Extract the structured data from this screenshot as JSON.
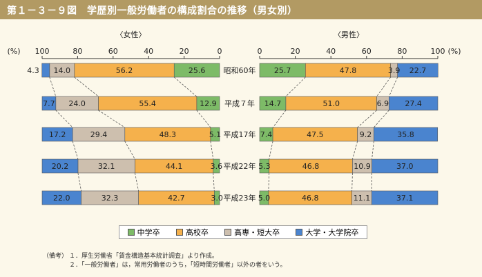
{
  "figure": {
    "title": "第１－３－９図　学歴別一般労働者の構成割合の推移（男女別）"
  },
  "chart_data": {
    "type": "bar",
    "orientation": "horizontal",
    "stacked": true,
    "unit_left": "(%)",
    "unit_right": "(%)",
    "categories": [
      "昭和60年",
      "平成７年",
      "平成17年",
      "平成22年",
      "平成23年"
    ],
    "panels": [
      {
        "name": "〈女性〉",
        "direction": "right-to-left",
        "xlim": [
          0,
          100
        ],
        "tick_labels": [
          "100",
          "80",
          "60",
          "40",
          "20",
          "0"
        ],
        "series": [
          {
            "name": "中学卒",
            "color": "#7dbb67",
            "values": [
              25.6,
              12.9,
              5.1,
              3.6,
              3.0
            ]
          },
          {
            "name": "高校卒",
            "color": "#f5b14c",
            "values": [
              56.2,
              55.4,
              48.3,
              44.1,
              42.7
            ]
          },
          {
            "name": "高専・短大卒",
            "color": "#cdbfae",
            "values": [
              14.0,
              24.0,
              29.4,
              32.1,
              32.3
            ]
          },
          {
            "name": "大学・大学院卒",
            "color": "#4a84cf",
            "values": [
              4.3,
              7.7,
              17.2,
              20.2,
              22.0
            ]
          }
        ]
      },
      {
        "name": "〈男性〉",
        "direction": "left-to-right",
        "xlim": [
          0,
          100
        ],
        "tick_labels": [
          "0",
          "20",
          "40",
          "60",
          "80",
          "100"
        ],
        "series": [
          {
            "name": "中学卒",
            "color": "#7dbb67",
            "values": [
              25.7,
              14.7,
              7.4,
              5.3,
              5.0
            ]
          },
          {
            "name": "高校卒",
            "color": "#f5b14c",
            "values": [
              47.8,
              51.0,
              47.5,
              46.8,
              46.8
            ]
          },
          {
            "name": "高専・短大卒",
            "color": "#cdbfae",
            "values": [
              3.9,
              6.9,
              9.2,
              10.9,
              11.1
            ]
          },
          {
            "name": "大学・大学院卒",
            "color": "#4a84cf",
            "values": [
              22.7,
              27.4,
              35.8,
              37.0,
              37.1
            ]
          }
        ]
      }
    ],
    "legend": [
      "中学卒",
      "高校卒",
      "高専・短大卒",
      "大学・大学院卒"
    ]
  },
  "notes": {
    "label": "（備考）",
    "lines": [
      "１．厚生労働省「賃金構造基本統計調査」より作成。",
      "２．「一般労働者」は，常用労働者のうち，「短時間労働者」以外の者をいう。"
    ]
  }
}
